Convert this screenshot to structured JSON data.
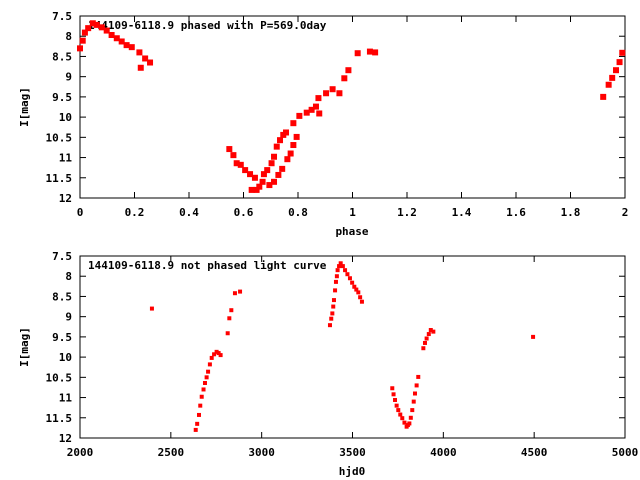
{
  "colors": {
    "points": "#ff0000",
    "axes": "#000000"
  },
  "chart_data": [
    {
      "type": "scatter",
      "title": "144109-6118.9 phased with P=569.0day",
      "xlabel": "phase",
      "ylabel": "I[mag]",
      "xlim": [
        0,
        2
      ],
      "ylim": [
        12,
        7.5
      ],
      "y_inverted": true,
      "xticks": [
        "0",
        "0.2",
        "0.4",
        "0.6",
        "0.8",
        "1",
        "1.2",
        "1.4",
        "1.6",
        "1.8",
        "2"
      ],
      "xtick_values": [
        0,
        0.2,
        0.4,
        0.6,
        0.8,
        1,
        1.2,
        1.4,
        1.6,
        1.8,
        2
      ],
      "yticks": [
        "7.5",
        "8",
        "8.5",
        "9",
        "9.5",
        "10",
        "10.5",
        "11",
        "11.5",
        "12"
      ],
      "ytick_values": [
        7.5,
        8,
        8.5,
        9,
        9.5,
        10,
        10.5,
        11,
        11.5,
        12
      ],
      "grid": false,
      "points": [
        [
          0.0,
          8.3
        ],
        [
          0.01,
          8.11
        ],
        [
          0.018,
          7.91
        ],
        [
          0.03,
          7.8
        ],
        [
          0.047,
          7.68
        ],
        [
          0.061,
          7.72
        ],
        [
          0.08,
          7.78
        ],
        [
          0.098,
          7.86
        ],
        [
          0.116,
          7.97
        ],
        [
          0.135,
          8.05
        ],
        [
          0.153,
          8.13
        ],
        [
          0.171,
          8.22
        ],
        [
          0.19,
          8.27
        ],
        [
          0.218,
          8.4
        ],
        [
          0.223,
          8.78
        ],
        [
          0.239,
          8.55
        ],
        [
          0.257,
          8.65
        ],
        [
          0.548,
          10.79
        ],
        [
          0.563,
          10.94
        ],
        [
          0.575,
          11.14
        ],
        [
          0.59,
          11.18
        ],
        [
          0.606,
          11.31
        ],
        [
          0.624,
          11.41
        ],
        [
          0.642,
          11.5
        ],
        [
          0.63,
          11.8
        ],
        [
          0.648,
          11.8
        ],
        [
          0.658,
          11.72
        ],
        [
          0.67,
          11.6
        ],
        [
          0.675,
          11.41
        ],
        [
          0.687,
          11.31
        ],
        [
          0.695,
          11.68
        ],
        [
          0.703,
          11.14
        ],
        [
          0.712,
          10.98
        ],
        [
          0.722,
          10.73
        ],
        [
          0.734,
          10.57
        ],
        [
          0.746,
          10.44
        ],
        [
          0.756,
          10.38
        ],
        [
          0.712,
          11.6
        ],
        [
          0.728,
          11.43
        ],
        [
          0.742,
          11.28
        ],
        [
          0.761,
          11.04
        ],
        [
          0.773,
          10.9
        ],
        [
          0.783,
          10.69
        ],
        [
          0.795,
          10.49
        ],
        [
          0.783,
          10.15
        ],
        [
          0.805,
          9.97
        ],
        [
          0.832,
          9.89
        ],
        [
          0.85,
          9.82
        ],
        [
          0.866,
          9.74
        ],
        [
          0.878,
          9.91
        ],
        [
          0.875,
          9.53
        ],
        [
          0.903,
          9.41
        ],
        [
          0.927,
          9.31
        ],
        [
          0.952,
          9.41
        ],
        [
          0.97,
          9.04
        ],
        [
          0.985,
          8.84
        ],
        [
          1.019,
          8.42
        ],
        [
          1.064,
          8.38
        ],
        [
          1.083,
          8.4
        ],
        [
          1.92,
          9.5
        ],
        [
          1.94,
          9.2
        ],
        [
          1.953,
          9.03
        ],
        [
          1.967,
          8.84
        ],
        [
          1.98,
          8.64
        ],
        [
          1.99,
          8.41
        ]
      ]
    },
    {
      "type": "scatter",
      "title": "144109-6118.9 not phased light curve",
      "xlabel": "hjd0",
      "ylabel": "I[mag]",
      "xlim": [
        2000,
        5000
      ],
      "ylim": [
        12,
        7.5
      ],
      "y_inverted": true,
      "xticks": [
        "2000",
        "2500",
        "3000",
        "3500",
        "4000",
        "4500",
        "5000"
      ],
      "xtick_values": [
        2000,
        2500,
        3000,
        3500,
        4000,
        4500,
        5000
      ],
      "yticks": [
        "7.5",
        "8",
        "8.5",
        "9",
        "9.5",
        "10",
        "10.5",
        "11",
        "11.5",
        "12"
      ],
      "ytick_values": [
        7.5,
        8,
        8.5,
        9,
        9.5,
        10,
        10.5,
        11,
        11.5,
        12
      ],
      "grid": false,
      "points": [
        [
          2396,
          8.8
        ],
        [
          2637,
          11.8
        ],
        [
          2645,
          11.65
        ],
        [
          2655,
          11.43
        ],
        [
          2662,
          11.2
        ],
        [
          2670,
          10.98
        ],
        [
          2680,
          10.8
        ],
        [
          2688,
          10.64
        ],
        [
          2697,
          10.5
        ],
        [
          2705,
          10.36
        ],
        [
          2715,
          10.18
        ],
        [
          2725,
          10.02
        ],
        [
          2738,
          9.93
        ],
        [
          2752,
          9.87
        ],
        [
          2763,
          9.9
        ],
        [
          2774,
          9.95
        ],
        [
          2813,
          9.41
        ],
        [
          2822,
          9.04
        ],
        [
          2833,
          8.84
        ],
        [
          2853,
          8.42
        ],
        [
          2881,
          8.38
        ],
        [
          3376,
          9.21
        ],
        [
          3383,
          9.05
        ],
        [
          3389,
          8.92
        ],
        [
          3394,
          8.75
        ],
        [
          3398,
          8.59
        ],
        [
          3404,
          8.35
        ],
        [
          3409,
          8.14
        ],
        [
          3414,
          8.0
        ],
        [
          3418,
          7.85
        ],
        [
          3426,
          7.75
        ],
        [
          3435,
          7.68
        ],
        [
          3447,
          7.75
        ],
        [
          3459,
          7.85
        ],
        [
          3472,
          7.95
        ],
        [
          3486,
          8.05
        ],
        [
          3498,
          8.16
        ],
        [
          3510,
          8.26
        ],
        [
          3521,
          8.33
        ],
        [
          3532,
          8.4
        ],
        [
          3542,
          8.52
        ],
        [
          3552,
          8.63
        ],
        [
          3719,
          10.77
        ],
        [
          3726,
          10.92
        ],
        [
          3734,
          11.06
        ],
        [
          3743,
          11.2
        ],
        [
          3752,
          11.31
        ],
        [
          3763,
          11.42
        ],
        [
          3774,
          11.51
        ],
        [
          3786,
          11.62
        ],
        [
          3798,
          11.72
        ],
        [
          3805,
          11.68
        ],
        [
          3813,
          11.64
        ],
        [
          3821,
          11.5
        ],
        [
          3829,
          11.31
        ],
        [
          3837,
          11.1
        ],
        [
          3844,
          10.9
        ],
        [
          3853,
          10.7
        ],
        [
          3862,
          10.49
        ],
        [
          3890,
          9.78
        ],
        [
          3899,
          9.65
        ],
        [
          3908,
          9.54
        ],
        [
          3920,
          9.43
        ],
        [
          3931,
          9.33
        ],
        [
          3945,
          9.37
        ],
        [
          4494,
          9.5
        ]
      ]
    }
  ]
}
